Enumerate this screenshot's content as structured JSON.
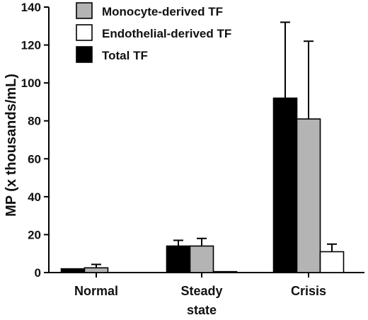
{
  "chart_data": {
    "type": "bar",
    "ylabel": "MP (x thousands/mL)",
    "ylim": [
      0,
      140
    ],
    "yticks": [
      0,
      20,
      40,
      60,
      80,
      100,
      120,
      140
    ],
    "categories": [
      [
        "Normal"
      ],
      [
        "Steady",
        "state"
      ],
      [
        "Crisis"
      ]
    ],
    "series": [
      {
        "name": "Total TF",
        "color": "#000000",
        "values": [
          2,
          14,
          92
        ],
        "errors": [
          0,
          3,
          40
        ]
      },
      {
        "name": "Monocyte-derived TF",
        "color": "#b4b4b4",
        "values": [
          2.5,
          14,
          81
        ],
        "errors": [
          1.8,
          4,
          41
        ]
      },
      {
        "name": "Endothelial-derived TF",
        "color": "#ffffff",
        "values": [
          0,
          0.5,
          11
        ],
        "errors": [
          0,
          0,
          4
        ]
      }
    ],
    "legend_order": [
      1,
      2,
      0
    ],
    "legend_position": "top-left",
    "grid": false
  }
}
